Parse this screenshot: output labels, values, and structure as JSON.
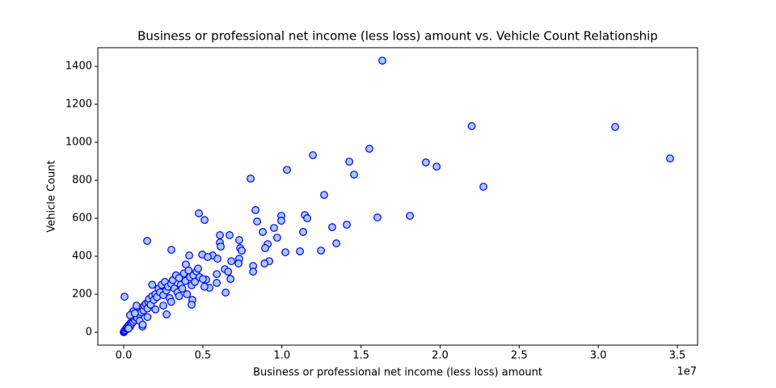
{
  "chart_data": {
    "type": "scatter",
    "title": "Business or professional net income (less loss) amount vs. Vehicle Count Relationship",
    "x_label": "Business or professional net income (less loss) amount",
    "y_label": "Vehicle Count",
    "x_offset_label": "1e7",
    "marker_color": "#a8c8f0",
    "marker_edge_color": "#0000ee",
    "xlim": [
      -1640000,
      36280000
    ],
    "ylim": [
      -68,
      1498
    ],
    "xticks": [
      {
        "value": 0,
        "label": "0.0"
      },
      {
        "value": 5000000,
        "label": "0.5"
      },
      {
        "value": 10000000,
        "label": "1.0"
      },
      {
        "value": 15000000,
        "label": "1.5"
      },
      {
        "value": 20000000,
        "label": "2.0"
      },
      {
        "value": 25000000,
        "label": "2.5"
      },
      {
        "value": 30000000,
        "label": "3.0"
      },
      {
        "value": 35000000,
        "label": "3.5"
      }
    ],
    "yticks": [
      0,
      200,
      400,
      600,
      800,
      1000,
      1200,
      1400
    ],
    "x": [
      16350000,
      22000000,
      31070000,
      34540000,
      22740000,
      19100000,
      19780000,
      15530000,
      11960000,
      14260000,
      14560000,
      10320000,
      8020000,
      12670000,
      8330000,
      9960000,
      11450000,
      11600000,
      16040000,
      18090000,
      14100000,
      13180000,
      8430000,
      9960000,
      9500000,
      8790000,
      11340000,
      9700000,
      13440000,
      9100000,
      8940000,
      7300000,
      7360000,
      7460000,
      11140000,
      12470000,
      10220000,
      9200000,
      8900000,
      7300000,
      7260000,
      8180000,
      8180000,
      4750000,
      5110000,
      1480000,
      3010000,
      6080000,
      6690000,
      6080000,
      6130000,
      4140000,
      4960000,
      5620000,
      5310000,
      5930000,
      6800000,
      3930000,
      50000,
      6390000,
      6600000,
      5880000,
      6440000,
      5420000,
      6750000,
      5880000,
      5210000,
      4290000,
      4340000,
      4290000,
      2710000,
      1180000,
      0,
      20000,
      50000,
      100000,
      150000,
      200000,
      250000,
      300000,
      350000,
      400000,
      450000,
      500000,
      550000,
      600000,
      650000,
      700000,
      750000,
      800000,
      850000,
      900000,
      950000,
      1000000,
      1050000,
      1100000,
      1200000,
      1250000,
      1300000,
      1400000,
      1500000,
      1550000,
      1600000,
      1700000,
      1800000,
      1900000,
      2000000,
      2100000,
      2200000,
      2300000,
      2400000,
      2500000,
      2600000,
      2700000,
      2800000,
      2900000,
      3000000,
      3100000,
      3200000,
      3300000,
      3400000,
      3500000,
      3600000,
      3700000,
      3800000,
      3900000,
      4000000,
      4100000,
      4200000,
      4400000,
      4500000,
      4600000,
      4700000,
      4800000,
      5000000,
      5100000,
      600000,
      800000,
      1000000,
      400000,
      2000000,
      1500000,
      2500000,
      3000000,
      3500000,
      1800000,
      300000,
      700000,
      1200000
    ],
    "values": [
      1430,
      1085,
      1081,
      915,
      766,
      894,
      872,
      966,
      932,
      898,
      830,
      855,
      809,
      723,
      643,
      613,
      617,
      600,
      604,
      613,
      566,
      553,
      583,
      587,
      549,
      528,
      528,
      498,
      468,
      464,
      443,
      485,
      443,
      430,
      426,
      430,
      421,
      374,
      362,
      387,
      362,
      349,
      319,
      626,
      591,
      481,
      434,
      511,
      511,
      472,
      451,
      404,
      409,
      404,
      396,
      387,
      374,
      357,
      187,
      332,
      319,
      306,
      209,
      234,
      281,
      260,
      277,
      247,
      170,
      145,
      94,
      30,
      0,
      3,
      8,
      12,
      20,
      25,
      18,
      35,
      40,
      30,
      50,
      45,
      60,
      55,
      70,
      65,
      80,
      90,
      75,
      100,
      110,
      95,
      120,
      105,
      130,
      115,
      140,
      150,
      125,
      160,
      175,
      145,
      190,
      170,
      200,
      185,
      230,
      210,
      250,
      195,
      265,
      220,
      240,
      180,
      255,
      275,
      230,
      300,
      210,
      285,
      250,
      230,
      310,
      270,
      200,
      325,
      290,
      300,
      265,
      320,
      335,
      290,
      280,
      240,
      110,
      140,
      60,
      90,
      120,
      80,
      140,
      160,
      190,
      250,
      20,
      100,
      40
    ]
  }
}
